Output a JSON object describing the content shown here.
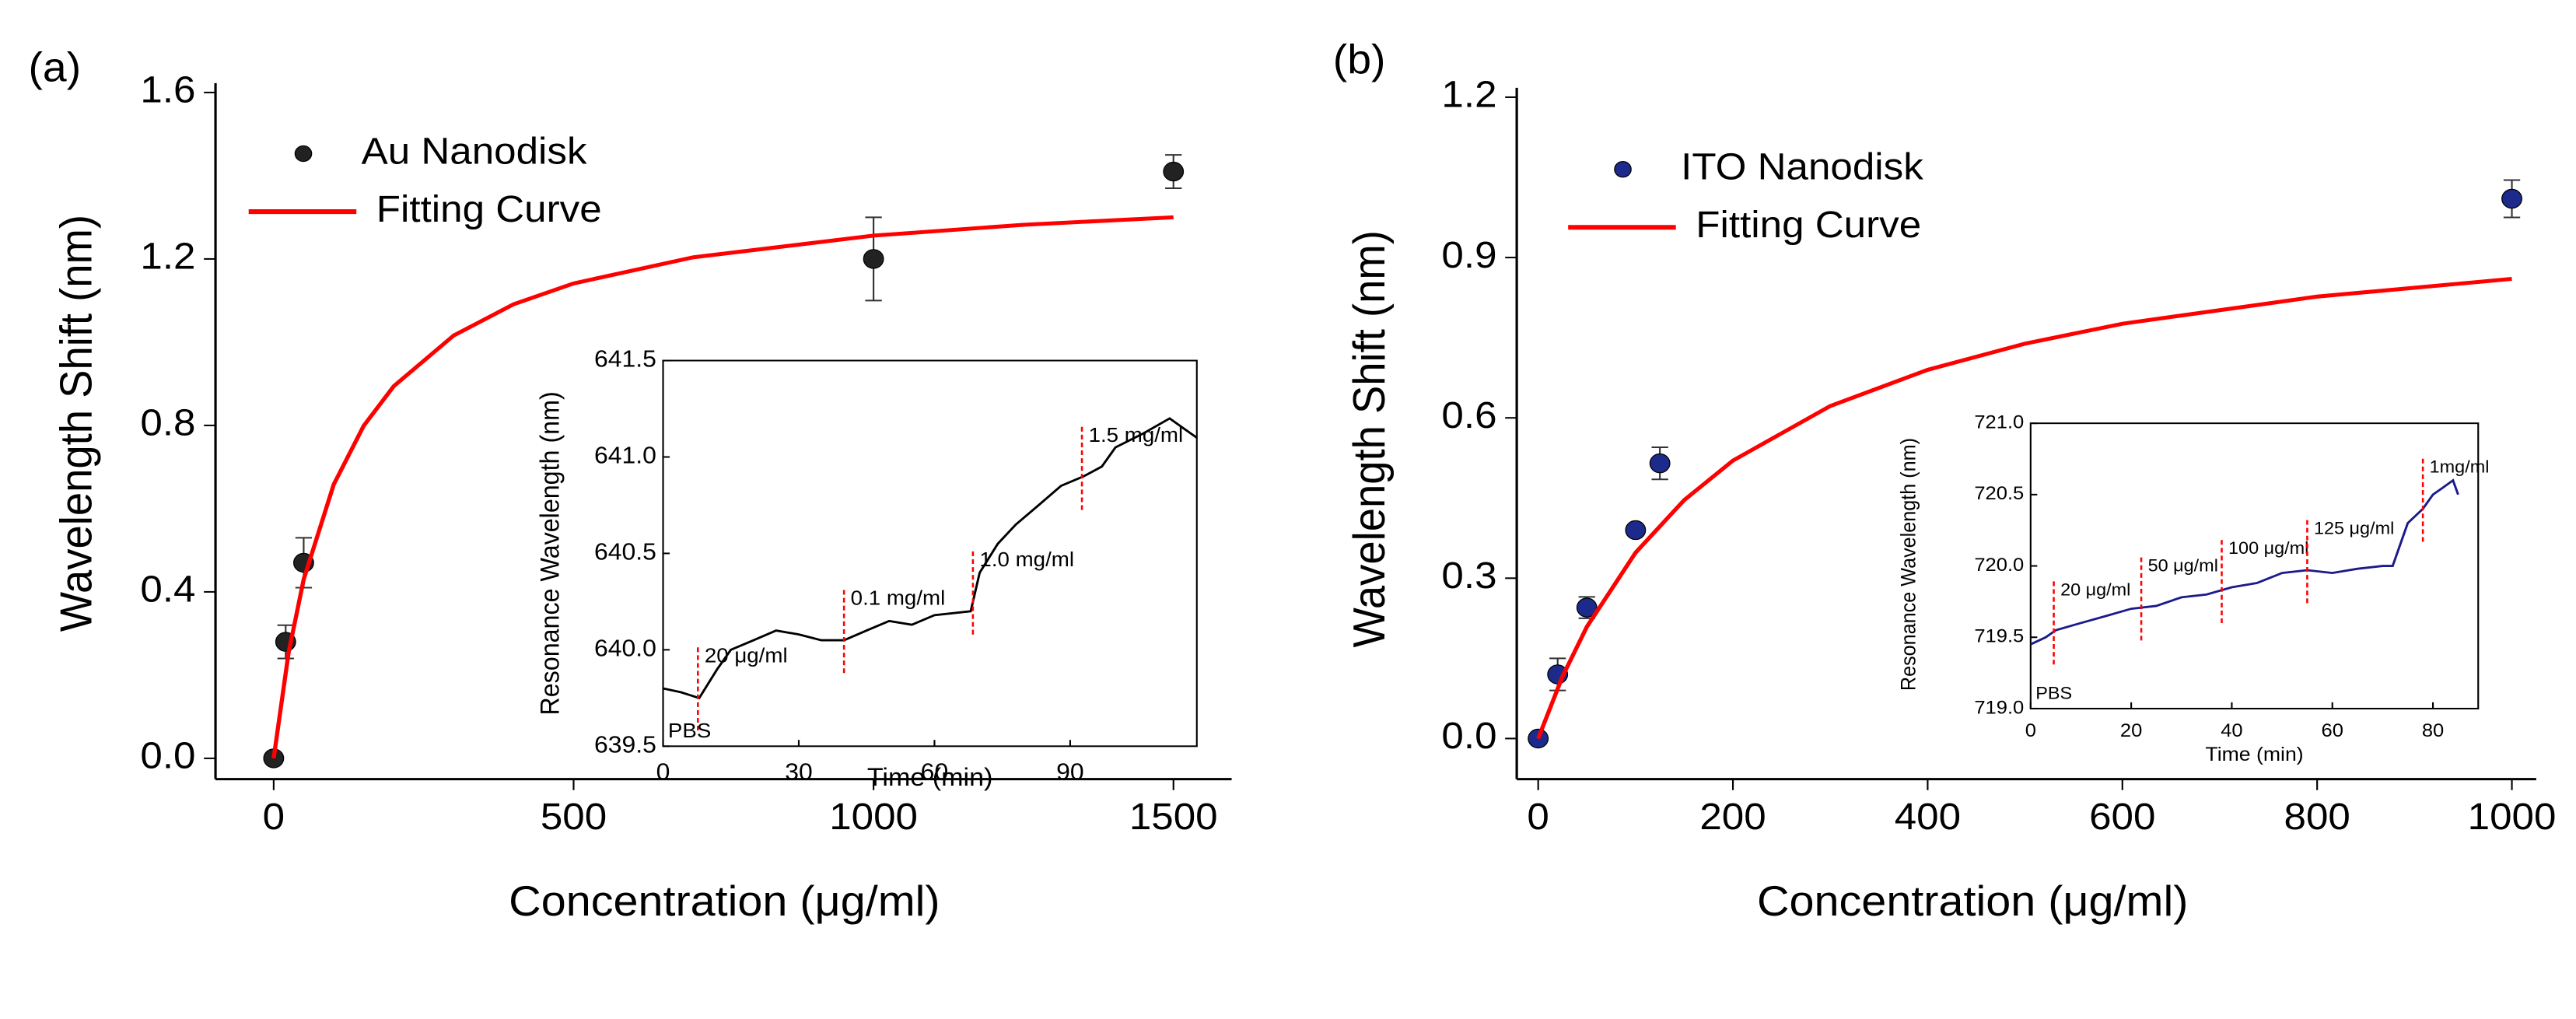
{
  "chart_data": [
    {
      "type": "scatter",
      "panel": "(a)",
      "x_label": "Concentration (μg/ml)",
      "y_label": "Wavelength Shift (nm)",
      "xlim": [
        -97,
        1597
      ],
      "xticks": [
        0,
        500,
        1000,
        1500
      ],
      "ylim": [
        -0.05,
        1.6
      ],
      "yticks": [
        {
          "value": 0,
          "label": "0.0"
        },
        0.4,
        0.8,
        1.2,
        1.6
      ],
      "legend": "upper left",
      "series": [
        {
          "name": "Au Nanodisk",
          "mode": "markers",
          "color": "#222222",
          "x": [
            0,
            20,
            50,
            1000,
            1500
          ],
          "values": [
            0,
            0.28,
            0.47,
            1.2,
            1.41
          ],
          "errors": [
            0.01,
            0.04,
            0.06,
            0.1,
            0.04
          ]
        },
        {
          "name": "Fitting Curve",
          "mode": "line",
          "color": "#ff0000",
          "x": [
            0,
            25,
            50,
            100,
            150,
            200,
            300,
            400,
            500,
            700,
            1000,
            1250,
            1500
          ],
          "values": [
            0,
            0.254,
            0.43,
            0.658,
            0.799,
            0.894,
            1.016,
            1.091,
            1.141,
            1.204,
            1.256,
            1.282,
            1.3
          ]
        }
      ]
    },
    {
      "type": "scatter",
      "panel": "(b)",
      "x_label": "Concentration (μg/ml)",
      "y_label": "Wavelength Shift (nm)",
      "xlim": [
        -22,
        1025
      ],
      "xticks": [
        0,
        200,
        400,
        600,
        800,
        1000
      ],
      "ylim": [
        -0.076,
        1.2
      ],
      "yticks": [
        {
          "value": 0,
          "label": "0.0"
        },
        0.3,
        0.6,
        0.9,
        1.2
      ],
      "legend": "upper left",
      "series": [
        {
          "name": "ITO Nanodisk",
          "mode": "markers",
          "color": "#1c2a8c",
          "x": [
            0,
            20,
            50,
            100,
            125,
            1000
          ],
          "values": [
            0,
            0.12,
            0.245,
            0.39,
            0.515,
            1.01
          ],
          "errors": [
            0.01,
            0.03,
            0.02,
            0.01,
            0.03,
            0.035
          ]
        },
        {
          "name": "Fitting Curve",
          "mode": "line",
          "color": "#ff0000",
          "x": [
            0,
            25,
            50,
            100,
            150,
            200,
            300,
            400,
            500,
            600,
            800,
            1000
          ],
          "values": [
            0,
            0.116,
            0.209,
            0.348,
            0.446,
            0.52,
            0.622,
            0.69,
            0.739,
            0.776,
            0.827,
            0.86
          ]
        }
      ]
    },
    {
      "type": "line",
      "x_label": "Time (min)",
      "y_label": "Resonance Wavelength (nm)",
      "xlim": [
        0,
        118
      ],
      "xticks": [
        0,
        30,
        60,
        90
      ],
      "ylim": [
        639.5,
        641.5
      ],
      "yticks": [
        639.5,
        {
          "value": 640,
          "label": "640.0"
        },
        640.5,
        {
          "value": 641,
          "label": "641.0"
        },
        641.5
      ],
      "start_label": "PBS",
      "annotations": [
        {
          "text": "20 μg/ml",
          "x": 7.7
        },
        {
          "text": "0.1 mg/ml",
          "x": 40
        },
        {
          "text": "1.0 mg/ml",
          "x": 68.5
        },
        {
          "text": "1.5 mg/ml",
          "x": 92.6
        }
      ],
      "series": [
        {
          "color": "#000000",
          "x": [
            0,
            4,
            8,
            12,
            15,
            20,
            25,
            30,
            35,
            40,
            45,
            50,
            55,
            60,
            68,
            70,
            74,
            78,
            83,
            88,
            93,
            97,
            100,
            106,
            112,
            115,
            118
          ],
          "values": [
            639.8,
            639.78,
            639.75,
            639.9,
            640.0,
            640.05,
            640.1,
            640.08,
            640.05,
            640.05,
            640.1,
            640.15,
            640.13,
            640.18,
            640.2,
            640.4,
            640.55,
            640.65,
            640.75,
            640.85,
            640.9,
            640.95,
            641.05,
            641.12,
            641.2,
            641.15,
            641.1
          ]
        }
      ]
    },
    {
      "type": "line",
      "x_label": "Time (min)",
      "y_label": "Resonance Wavelength (nm)",
      "xlim": [
        0,
        89
      ],
      "xticks": [
        0,
        20,
        40,
        60,
        80
      ],
      "ylim": [
        719,
        721
      ],
      "yticks": [
        {
          "value": 719,
          "label": "719.0"
        },
        719.5,
        {
          "value": 720,
          "label": "720.0"
        },
        720.5,
        {
          "value": 721,
          "label": "721.0"
        }
      ],
      "start_label": "PBS",
      "annotations": [
        {
          "text": "20 μg/ml",
          "x": 4.6
        },
        {
          "text": "50 μg/ml",
          "x": 22
        },
        {
          "text": "100 μg/ml",
          "x": 38
        },
        {
          "text": "125 μg/ml",
          "x": 55
        },
        {
          "text": "1mg/ml",
          "x": 78
        }
      ],
      "series": [
        {
          "color": "#1a1a8c",
          "x": [
            0,
            3,
            5,
            10,
            15,
            20,
            25,
            30,
            35,
            40,
            45,
            50,
            55,
            60,
            65,
            70,
            72,
            75,
            78,
            80,
            82,
            84,
            85
          ],
          "values": [
            719.45,
            719.5,
            719.55,
            719.6,
            719.65,
            719.7,
            719.72,
            719.78,
            719.8,
            719.85,
            719.88,
            719.95,
            719.97,
            719.95,
            719.98,
            720.0,
            720.0,
            720.3,
            720.4,
            720.5,
            720.55,
            720.6,
            720.5
          ]
        }
      ]
    }
  ]
}
